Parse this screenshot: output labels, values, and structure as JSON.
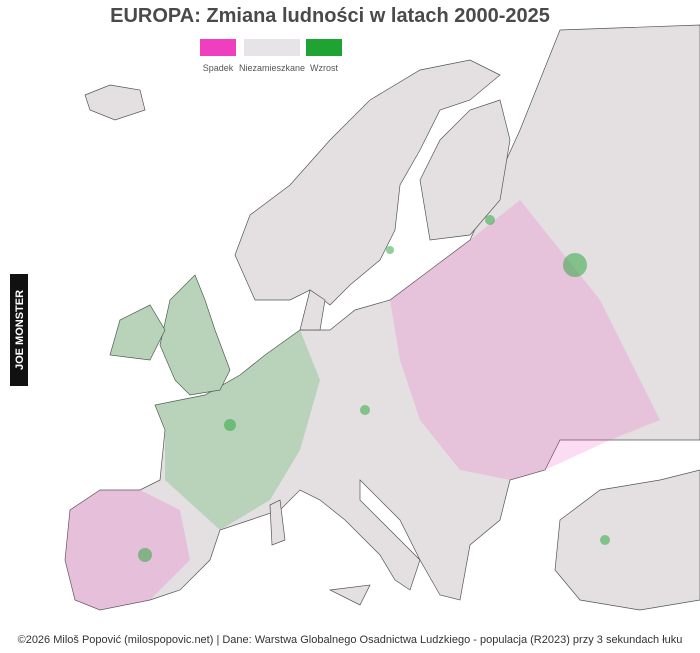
{
  "title": "EUROPA: Zmiana ludności w latach 2000-2025",
  "legend": [
    {
      "label": "Spadek",
      "color": "#ef3fbf"
    },
    {
      "label": "Niezamieszkane",
      "color": "#e6e4e6"
    },
    {
      "label": "Wzrost",
      "color": "#1fa332"
    }
  ],
  "watermark": "JOE MONSTER",
  "credit": "©2026 Miloš Popović (milospopovic.net) | Dane: Warstwa Globalnego Osadnictwa Ludzkiego - populacja (R2023) przy 3 sekundach łuku"
}
